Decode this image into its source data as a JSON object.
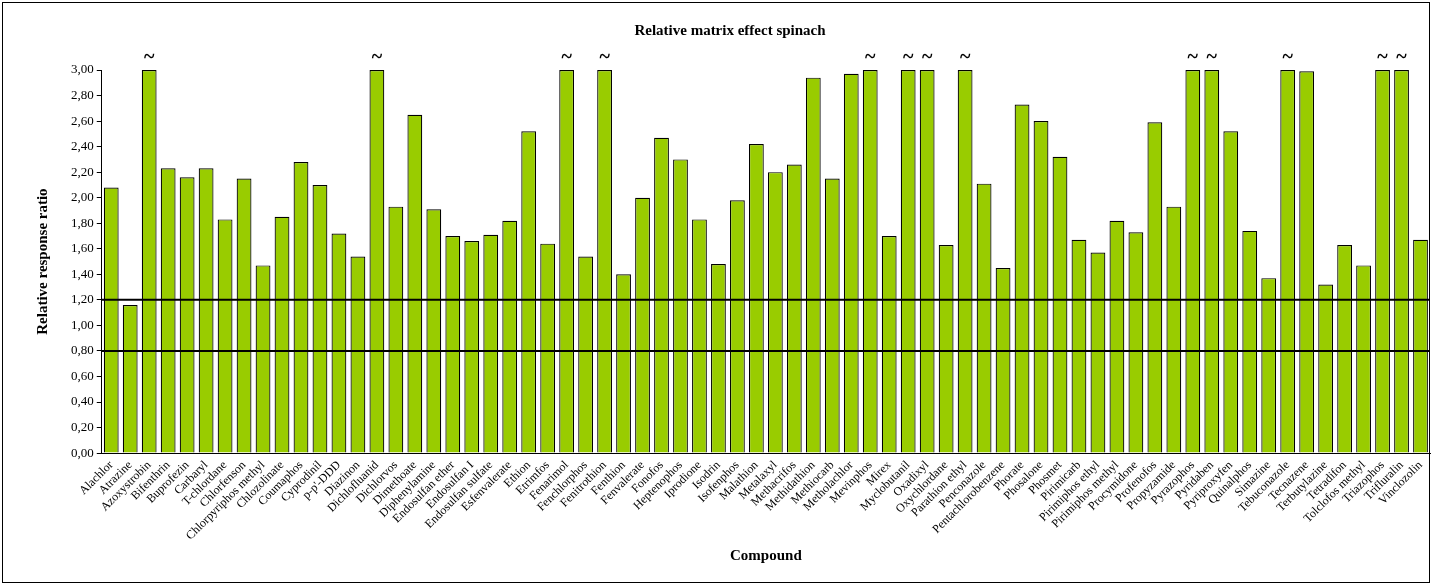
{
  "chart_data": {
    "type": "bar",
    "title": "Relative matrix effect spinach",
    "xlabel": "Compound",
    "ylabel": "Relative response ratio",
    "categories": [
      "Alachlor",
      "Atrazine",
      "Azoxystrobin",
      "Bifenthrin",
      "Buprofezin",
      "Carbaryl",
      "T-chlordane",
      "Chlorfenson",
      "Chlorpyriphos methyl",
      "Chlozolinate",
      "Coumaphos",
      "Cyprodinil",
      "p-p'-DDD",
      "Diazinon",
      "Dichlofluanid",
      "Dichlorvos",
      "Dimethoate",
      "Diphenylamine",
      "Endosulfan ether",
      "Endosulfan I",
      "Endosulfan sulfate",
      "Esfenvalerate",
      "Ethion",
      "Etrimfos",
      "Fenarimol",
      "Fenchlorphos",
      "Fenitrothion",
      "Fenthion",
      "Fenvalerate",
      "Fonofos",
      "Heptenophos",
      "Iprodione",
      "Isodrin",
      "Isofenphos",
      "Malathion",
      "Metalaxyl",
      "Methacrifos",
      "Methidathion",
      "Methiocarb",
      "Metholachlor",
      "Mevinphos",
      "Mirex",
      "Myclobutanil",
      "Oxadixyl",
      "Oxychlordane",
      "Parathion ethyl",
      "Penconazole",
      "Pentachlorobenzene",
      "Phorate",
      "Phosalone",
      "Phosmet",
      "Pirimicarb",
      "Pirimiphos ethyl",
      "Pirimiphos methyl",
      "Procymidone",
      "Profenofos",
      "Propyzamide",
      "Pyrazophos",
      "Pyridaben",
      "Pyriproxyfen",
      "Quinalphos",
      "Simazine",
      "Tebuconazole",
      "Tecnazene",
      "Terbutylazine",
      "Tetradifon",
      "Tolclofos methyl",
      "Triazophos",
      "Trifluralin",
      "Vinclozolin"
    ],
    "values": [
      2.08,
      1.16,
      3.0,
      2.23,
      2.16,
      2.23,
      1.83,
      2.15,
      1.47,
      1.85,
      2.28,
      2.1,
      1.72,
      1.54,
      3.0,
      1.93,
      2.65,
      1.91,
      1.7,
      1.66,
      1.71,
      1.82,
      2.52,
      1.64,
      3.0,
      1.54,
      3.0,
      1.4,
      2.0,
      2.47,
      2.3,
      1.83,
      1.48,
      1.98,
      2.42,
      2.2,
      2.26,
      2.94,
      2.15,
      2.97,
      3.0,
      1.7,
      3.0,
      3.0,
      1.63,
      3.0,
      2.11,
      1.45,
      2.73,
      2.6,
      2.32,
      1.67,
      1.57,
      1.82,
      1.73,
      2.59,
      1.93,
      3.0,
      3.0,
      2.52,
      1.74,
      1.37,
      3.0,
      2.99,
      1.32,
      1.63,
      1.47,
      3.0,
      3.0,
      1.67
    ],
    "value_labels": [
      null,
      null,
      "~",
      null,
      null,
      null,
      null,
      null,
      null,
      null,
      null,
      null,
      null,
      null,
      "~",
      null,
      null,
      null,
      null,
      null,
      null,
      null,
      null,
      null,
      "~",
      null,
      "~",
      null,
      null,
      null,
      null,
      null,
      null,
      null,
      null,
      null,
      null,
      null,
      null,
      null,
      "~",
      null,
      "~",
      "~",
      null,
      "~",
      null,
      null,
      null,
      null,
      null,
      null,
      null,
      null,
      null,
      null,
      null,
      "~",
      "~",
      null,
      null,
      null,
      "~",
      null,
      null,
      null,
      null,
      "~",
      "~",
      null
    ],
    "color": "#99cc00",
    "ylim": [
      0,
      3
    ],
    "yticks": [
      {
        "value": 0,
        "label": "0,00"
      },
      {
        "value": 0.2,
        "label": "0,20"
      },
      {
        "value": 0.4,
        "label": "0,40"
      },
      {
        "value": 0.6,
        "label": "0,60"
      },
      {
        "value": 0.8,
        "label": "0,80"
      },
      {
        "value": 1,
        "label": "1,00"
      },
      {
        "value": 1.2,
        "label": "1,20"
      },
      {
        "value": 1.4,
        "label": "1,40"
      },
      {
        "value": 1.6,
        "label": "1,60"
      },
      {
        "value": 1.8,
        "label": "1,80"
      },
      {
        "value": 2,
        "label": "2,00"
      },
      {
        "value": 2.2,
        "label": "2,20"
      },
      {
        "value": 2.4,
        "label": "2,40"
      },
      {
        "value": 2.6,
        "label": "2,60"
      },
      {
        "value": 2.8,
        "label": "2,80"
      },
      {
        "value": 3,
        "label": "3,00"
      }
    ],
    "ref_lines": [
      {
        "axis": "y",
        "value": 1.2,
        "color": "#000000"
      },
      {
        "axis": "y",
        "value": 0.8,
        "color": "#000000"
      }
    ],
    "grid": false,
    "legend": false
  }
}
